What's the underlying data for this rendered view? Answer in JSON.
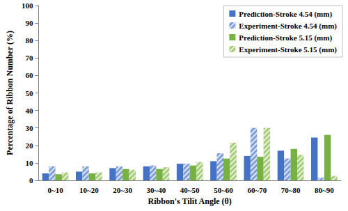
{
  "chart_data": {
    "type": "bar",
    "x_label": "Ribbon's Tilit Angle (θ)",
    "y_label": "Percentage of Ribbon Number (%)",
    "categories": [
      "0~10",
      "10~20",
      "20~30",
      "30~40",
      "40~50",
      "50~60",
      "60~70",
      "70~80",
      "80~90"
    ],
    "series": [
      {
        "name": "Prediction-Stroke 4.54 (mm)",
        "color": "#4472c4",
        "marker": "solid",
        "values": [
          4,
          5,
          7,
          8,
          9.5,
          11,
          14,
          17,
          24.5
        ]
      },
      {
        "name": "Experiment-Stroke 4.54 (mm)",
        "color": "#7f9fd6",
        "marker": "hatched",
        "values": [
          8,
          8,
          8,
          8.5,
          9.5,
          15.5,
          30,
          12.5,
          1.5
        ]
      },
      {
        "name": "Prediction-Stroke 5.15 (mm)",
        "color": "#77b043",
        "marker": "solid",
        "values": [
          3.5,
          4,
          6.5,
          6.5,
          8.5,
          12.5,
          13.5,
          18,
          26
        ]
      },
      {
        "name": "Experiment-Stroke 5.15 (mm)",
        "color": "#a6cc7a",
        "marker": "hatched",
        "values": [
          4.5,
          4.5,
          6,
          7.5,
          10.5,
          21.5,
          30,
          14.5,
          2.5
        ]
      }
    ],
    "ylim": [
      0,
      100
    ],
    "yticks": [
      0,
      10,
      20,
      30,
      40,
      50,
      60,
      70,
      80,
      90,
      100
    ],
    "grid": false,
    "legend": "upper right"
  }
}
